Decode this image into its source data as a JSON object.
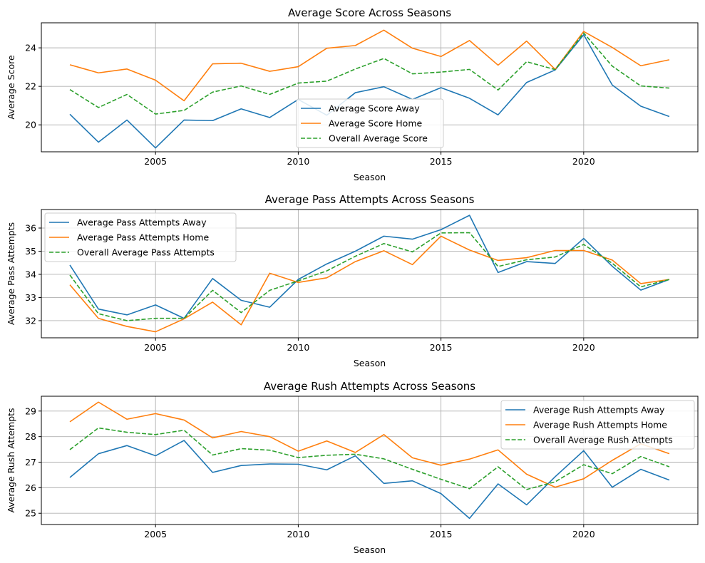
{
  "chart_data": [
    {
      "type": "line",
      "title": "Average Score Across Seasons",
      "xlabel": "Season",
      "ylabel": "Average Score",
      "xlim": [
        2001,
        2024
      ],
      "ylim": [
        18.6,
        25.3
      ],
      "xticks": [
        2005,
        2010,
        2015,
        2020
      ],
      "yticks": [
        20,
        22,
        24
      ],
      "grid": true,
      "legend_position": "lower-center",
      "x": [
        2002,
        2003,
        2004,
        2005,
        2006,
        2007,
        2008,
        2009,
        2010,
        2011,
        2012,
        2013,
        2014,
        2015,
        2016,
        2017,
        2018,
        2019,
        2020,
        2021,
        2022,
        2023
      ],
      "series": [
        {
          "name": "Average Score Away",
          "color": "#1f77b4",
          "dash": "solid",
          "values": [
            20.55,
            19.1,
            20.25,
            18.8,
            20.25,
            20.22,
            20.83,
            20.38,
            21.32,
            20.5,
            21.67,
            21.98,
            21.32,
            21.93,
            21.38,
            20.52,
            22.2,
            22.85,
            24.68,
            22.07,
            20.97,
            20.43
          ]
        },
        {
          "name": "Average Score Home",
          "color": "#ff7f0e",
          "dash": "solid",
          "values": [
            23.12,
            22.7,
            22.9,
            22.32,
            21.25,
            23.17,
            23.2,
            22.78,
            23.02,
            23.98,
            24.12,
            24.92,
            23.98,
            23.55,
            24.38,
            23.1,
            24.35,
            22.88,
            24.85,
            24.02,
            23.07,
            23.38
          ]
        },
        {
          "name": "Overall Average Score",
          "color": "#2ca02c",
          "dash": "dashed",
          "values": [
            21.83,
            20.9,
            21.58,
            20.56,
            20.75,
            21.7,
            22.02,
            21.58,
            22.17,
            22.27,
            22.9,
            23.45,
            22.65,
            22.74,
            22.88,
            21.81,
            23.28,
            22.87,
            24.77,
            23.05,
            22.02,
            21.91
          ]
        }
      ]
    },
    {
      "type": "line",
      "title": "Average Pass Attempts Across Seasons",
      "xlabel": "Season",
      "ylabel": "Average Pass Attempts",
      "xlim": [
        2001,
        2024
      ],
      "ylim": [
        31.26,
        36.8
      ],
      "xticks": [
        2005,
        2010,
        2015,
        2020
      ],
      "yticks": [
        32,
        33,
        34,
        35,
        36
      ],
      "grid": true,
      "legend_position": "upper-left",
      "x": [
        2002,
        2003,
        2004,
        2005,
        2006,
        2007,
        2008,
        2009,
        2010,
        2011,
        2012,
        2013,
        2014,
        2015,
        2016,
        2017,
        2018,
        2019,
        2020,
        2021,
        2022,
        2023
      ],
      "series": [
        {
          "name": "Average Pass Attempts Away",
          "color": "#1f77b4",
          "dash": "solid",
          "values": [
            34.4,
            32.5,
            32.25,
            32.68,
            32.1,
            33.82,
            32.88,
            32.58,
            33.78,
            34.45,
            35.0,
            35.65,
            35.52,
            35.93,
            36.55,
            34.08,
            34.55,
            34.47,
            35.55,
            34.35,
            33.32,
            33.78
          ]
        },
        {
          "name": "Average Pass Attempts Home",
          "color": "#ff7f0e",
          "dash": "solid",
          "values": [
            33.55,
            32.1,
            31.75,
            31.52,
            32.08,
            32.8,
            31.82,
            34.05,
            33.65,
            33.85,
            34.55,
            35.02,
            34.42,
            35.65,
            35.05,
            34.6,
            34.72,
            35.03,
            35.03,
            34.62,
            33.6,
            33.78
          ]
        },
        {
          "name": "Overall Average Pass Attempts",
          "color": "#2ca02c",
          "dash": "dashed",
          "values": [
            33.97,
            32.3,
            32.0,
            32.1,
            32.1,
            33.31,
            32.35,
            33.31,
            33.72,
            34.15,
            34.78,
            35.33,
            34.97,
            35.79,
            35.8,
            34.34,
            34.63,
            34.75,
            35.29,
            34.48,
            33.46,
            33.78
          ]
        }
      ]
    },
    {
      "type": "line",
      "title": "Average Rush Attempts Across Seasons",
      "xlabel": "Season",
      "ylabel": "Average Rush Attempts",
      "xlim": [
        2001,
        2024
      ],
      "ylim": [
        24.56,
        29.58
      ],
      "xticks": [
        2005,
        2010,
        2015,
        2020
      ],
      "yticks": [
        25,
        26,
        27,
        28,
        29
      ],
      "grid": true,
      "legend_position": "upper-right",
      "x": [
        2002,
        2003,
        2004,
        2005,
        2006,
        2007,
        2008,
        2009,
        2010,
        2011,
        2012,
        2013,
        2014,
        2015,
        2016,
        2017,
        2018,
        2019,
        2020,
        2021,
        2022,
        2023
      ],
      "series": [
        {
          "name": "Average Rush Attempts Away",
          "color": "#1f77b4",
          "dash": "solid",
          "values": [
            26.4,
            27.33,
            27.65,
            27.25,
            27.85,
            26.6,
            26.87,
            26.93,
            26.92,
            26.7,
            27.25,
            26.17,
            26.27,
            25.77,
            24.8,
            26.15,
            25.33,
            26.43,
            27.45,
            26.02,
            26.72,
            26.3
          ]
        },
        {
          "name": "Average Rush Attempts Home",
          "color": "#ff7f0e",
          "dash": "solid",
          "values": [
            28.58,
            29.35,
            28.68,
            28.9,
            28.65,
            27.95,
            28.2,
            28.0,
            27.43,
            27.83,
            27.38,
            28.08,
            27.17,
            26.88,
            27.12,
            27.48,
            26.53,
            26.02,
            26.35,
            27.07,
            27.72,
            27.33
          ]
        },
        {
          "name": "Overall Average Rush Attempts",
          "color": "#2ca02c",
          "dash": "dashed",
          "values": [
            27.49,
            28.34,
            28.17,
            28.08,
            28.25,
            27.28,
            27.53,
            27.47,
            27.18,
            27.27,
            27.31,
            27.13,
            26.72,
            26.33,
            25.96,
            26.82,
            25.93,
            26.23,
            26.9,
            26.55,
            27.22,
            26.82
          ]
        }
      ]
    }
  ]
}
